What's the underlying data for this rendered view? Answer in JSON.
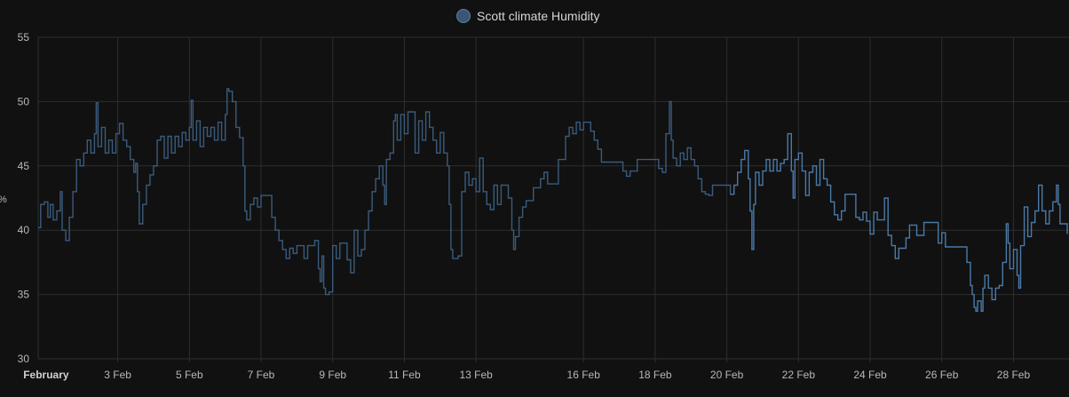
{
  "chart_data": {
    "type": "line",
    "title": "",
    "legend": {
      "position": "top-center",
      "entries": [
        "Scott climate Humidity"
      ]
    },
    "ylabel": "%",
    "ylim": [
      30,
      55
    ],
    "yticks": [
      30,
      35,
      40,
      45,
      50,
      55
    ],
    "xlim": [
      0.78,
      29.55
    ],
    "grid": true,
    "colors": {
      "series": "#4a79a8",
      "series_early": "#3a5b7c",
      "grid": "#2e2e2e",
      "legend_marker": "#3c5573"
    },
    "xticks": [
      {
        "day": 1,
        "label": "February",
        "bold": true
      },
      {
        "day": 3,
        "label": "3 Feb"
      },
      {
        "day": 5,
        "label": "5 Feb"
      },
      {
        "day": 7,
        "label": "7 Feb"
      },
      {
        "day": 9,
        "label": "9 Feb"
      },
      {
        "day": 11,
        "label": "11 Feb"
      },
      {
        "day": 13,
        "label": "13 Feb"
      },
      {
        "day": 16,
        "label": "16 Feb"
      },
      {
        "day": 18,
        "label": "18 Feb"
      },
      {
        "day": 20,
        "label": "20 Feb"
      },
      {
        "day": 22,
        "label": "22 Feb"
      },
      {
        "day": 24,
        "label": "24 Feb"
      },
      {
        "day": 26,
        "label": "26 Feb"
      },
      {
        "day": 28,
        "label": "28 Feb"
      }
    ],
    "series": [
      {
        "name": "Scott climate Humidity",
        "points": [
          [
            0.78,
            40.2
          ],
          [
            0.85,
            42
          ],
          [
            0.95,
            42.2
          ],
          [
            1.05,
            41
          ],
          [
            1.12,
            42
          ],
          [
            1.2,
            40.8
          ],
          [
            1.3,
            41.5
          ],
          [
            1.4,
            43
          ],
          [
            1.45,
            40
          ],
          [
            1.55,
            39.2
          ],
          [
            1.65,
            41
          ],
          [
            1.75,
            43
          ],
          [
            1.85,
            45.5
          ],
          [
            1.95,
            45
          ],
          [
            2.05,
            46
          ],
          [
            2.15,
            47
          ],
          [
            2.25,
            46
          ],
          [
            2.35,
            47.5
          ],
          [
            2.4,
            49.9
          ],
          [
            2.45,
            46.5
          ],
          [
            2.55,
            48
          ],
          [
            2.65,
            46
          ],
          [
            2.75,
            47
          ],
          [
            2.85,
            46
          ],
          [
            2.95,
            47.5
          ],
          [
            3.05,
            48.3
          ],
          [
            3.15,
            47
          ],
          [
            3.25,
            46.5
          ],
          [
            3.35,
            45.5
          ],
          [
            3.45,
            44.5
          ],
          [
            3.5,
            45.2
          ],
          [
            3.55,
            43
          ],
          [
            3.6,
            40.5
          ],
          [
            3.7,
            42
          ],
          [
            3.8,
            43.5
          ],
          [
            3.9,
            44.3
          ],
          [
            4.0,
            45
          ],
          [
            4.1,
            47
          ],
          [
            4.2,
            47.3
          ],
          [
            4.3,
            45.6
          ],
          [
            4.4,
            47.3
          ],
          [
            4.5,
            46
          ],
          [
            4.6,
            47.3
          ],
          [
            4.7,
            46.5
          ],
          [
            4.8,
            47.6
          ],
          [
            4.9,
            47
          ],
          [
            5.0,
            48
          ],
          [
            5.05,
            50.1
          ],
          [
            5.1,
            47
          ],
          [
            5.2,
            48.5
          ],
          [
            5.3,
            46.5
          ],
          [
            5.4,
            48
          ],
          [
            5.5,
            47.3
          ],
          [
            5.6,
            48
          ],
          [
            5.7,
            47
          ],
          [
            5.8,
            48.4
          ],
          [
            5.9,
            47
          ],
          [
            6.0,
            49
          ],
          [
            6.05,
            51
          ],
          [
            6.1,
            50.8
          ],
          [
            6.2,
            50
          ],
          [
            6.3,
            48
          ],
          [
            6.4,
            47.2
          ],
          [
            6.5,
            45
          ],
          [
            6.55,
            41.5
          ],
          [
            6.6,
            40.8
          ],
          [
            6.7,
            42
          ],
          [
            6.8,
            42.5
          ],
          [
            6.9,
            41.8
          ],
          [
            7.0,
            42.7
          ],
          [
            7.1,
            42.7
          ],
          [
            7.2,
            42.7
          ],
          [
            7.3,
            41
          ],
          [
            7.4,
            40
          ],
          [
            7.5,
            39.2
          ],
          [
            7.6,
            38.5
          ],
          [
            7.7,
            37.8
          ],
          [
            7.8,
            38.6
          ],
          [
            7.9,
            38.2
          ],
          [
            8.0,
            38.8
          ],
          [
            8.1,
            38.8
          ],
          [
            8.2,
            37.8
          ],
          [
            8.3,
            38.8
          ],
          [
            8.4,
            38.8
          ],
          [
            8.5,
            39.2
          ],
          [
            8.6,
            37
          ],
          [
            8.65,
            36
          ],
          [
            8.7,
            38
          ],
          [
            8.75,
            35.5
          ],
          [
            8.8,
            35
          ],
          [
            8.9,
            35.2
          ],
          [
            9.0,
            38.8
          ],
          [
            9.1,
            37.8
          ],
          [
            9.2,
            39
          ],
          [
            9.3,
            39
          ],
          [
            9.4,
            37.7
          ],
          [
            9.5,
            36.7
          ],
          [
            9.6,
            40
          ],
          [
            9.7,
            38
          ],
          [
            9.8,
            38.5
          ],
          [
            9.9,
            40
          ],
          [
            10.0,
            41.5
          ],
          [
            10.1,
            43
          ],
          [
            10.2,
            44
          ],
          [
            10.3,
            45
          ],
          [
            10.4,
            43.5
          ],
          [
            10.45,
            42
          ],
          [
            10.5,
            45.5
          ],
          [
            10.6,
            46
          ],
          [
            10.7,
            48.5
          ],
          [
            10.75,
            49
          ],
          [
            10.8,
            47
          ],
          [
            10.9,
            49
          ],
          [
            11.0,
            47.5
          ],
          [
            11.1,
            49.2
          ],
          [
            11.2,
            49.2
          ],
          [
            11.3,
            46
          ],
          [
            11.4,
            48.5
          ],
          [
            11.5,
            47
          ],
          [
            11.6,
            49.2
          ],
          [
            11.7,
            48
          ],
          [
            11.8,
            47
          ],
          [
            11.9,
            46
          ],
          [
            12.0,
            47.6
          ],
          [
            12.1,
            46
          ],
          [
            12.2,
            45
          ],
          [
            12.25,
            42
          ],
          [
            12.3,
            38.5
          ],
          [
            12.35,
            37.8
          ],
          [
            12.45,
            37.8
          ],
          [
            12.5,
            38
          ],
          [
            12.6,
            43
          ],
          [
            12.7,
            44.5
          ],
          [
            12.8,
            43.5
          ],
          [
            12.9,
            44
          ],
          [
            13.0,
            43
          ],
          [
            13.1,
            45.6
          ],
          [
            13.2,
            43
          ],
          [
            13.3,
            42
          ],
          [
            13.4,
            41.6
          ],
          [
            13.5,
            43.5
          ],
          [
            13.6,
            42
          ],
          [
            13.7,
            43.5
          ],
          [
            13.8,
            43.5
          ],
          [
            13.9,
            42.5
          ],
          [
            14.0,
            40
          ],
          [
            14.05,
            38.5
          ],
          [
            14.1,
            39.5
          ],
          [
            14.2,
            41
          ],
          [
            14.3,
            41.8
          ],
          [
            14.4,
            42.3
          ],
          [
            14.5,
            42.3
          ],
          [
            14.6,
            43.3
          ],
          [
            14.7,
            43.3
          ],
          [
            14.8,
            44
          ],
          [
            14.9,
            44.5
          ],
          [
            15.0,
            43.6
          ],
          [
            15.2,
            43.6
          ],
          [
            15.3,
            45.5
          ],
          [
            15.4,
            45.5
          ],
          [
            15.5,
            47.3
          ],
          [
            15.6,
            48
          ],
          [
            15.7,
            47.5
          ],
          [
            15.8,
            48.4
          ],
          [
            15.9,
            47.8
          ],
          [
            16.0,
            48.4
          ],
          [
            16.1,
            48.4
          ],
          [
            16.2,
            47.7
          ],
          [
            16.3,
            47
          ],
          [
            16.4,
            46.3
          ],
          [
            16.5,
            45.3
          ],
          [
            16.6,
            45.3
          ],
          [
            16.8,
            45.3
          ],
          [
            17.0,
            45.3
          ],
          [
            17.1,
            44.6
          ],
          [
            17.2,
            44.2
          ],
          [
            17.3,
            44.6
          ],
          [
            17.4,
            44.6
          ],
          [
            17.5,
            45.5
          ],
          [
            17.6,
            45.5
          ],
          [
            17.8,
            45.5
          ],
          [
            18.0,
            45.5
          ],
          [
            18.1,
            44.8
          ],
          [
            18.2,
            44.5
          ],
          [
            18.3,
            47.5
          ],
          [
            18.4,
            50
          ],
          [
            18.45,
            47
          ],
          [
            18.5,
            45.6
          ],
          [
            18.6,
            45
          ],
          [
            18.7,
            46
          ],
          [
            18.8,
            45.5
          ],
          [
            18.9,
            46.4
          ],
          [
            19.0,
            45.5
          ],
          [
            19.1,
            45
          ],
          [
            19.2,
            44
          ],
          [
            19.3,
            43
          ],
          [
            19.4,
            42.8
          ],
          [
            19.5,
            42.7
          ],
          [
            19.6,
            43.5
          ],
          [
            19.7,
            43.5
          ],
          [
            19.8,
            43.5
          ],
          [
            19.9,
            43.5
          ],
          [
            20.0,
            43.5
          ],
          [
            20.1,
            42.8
          ],
          [
            20.2,
            43.5
          ],
          [
            20.3,
            44.5
          ],
          [
            20.4,
            45.5
          ],
          [
            20.5,
            46.2
          ],
          [
            20.6,
            44
          ],
          [
            20.65,
            41.5
          ],
          [
            20.7,
            38.5
          ],
          [
            20.75,
            42
          ],
          [
            20.8,
            44.5
          ],
          [
            20.9,
            43.5
          ],
          [
            21.0,
            44.6
          ],
          [
            21.1,
            45.5
          ],
          [
            21.2,
            44.6
          ],
          [
            21.3,
            45.5
          ],
          [
            21.4,
            44.6
          ],
          [
            21.5,
            45.2
          ],
          [
            21.6,
            45.5
          ],
          [
            21.7,
            47.5
          ],
          [
            21.8,
            44.6
          ],
          [
            21.85,
            42.5
          ],
          [
            21.9,
            45.5
          ],
          [
            22.0,
            46
          ],
          [
            22.1,
            44.6
          ],
          [
            22.2,
            42.7
          ],
          [
            22.3,
            44.5
          ],
          [
            22.4,
            45
          ],
          [
            22.5,
            43.5
          ],
          [
            22.6,
            45.5
          ],
          [
            22.7,
            44
          ],
          [
            22.8,
            43.5
          ],
          [
            22.9,
            42.2
          ],
          [
            23.0,
            41.2
          ],
          [
            23.1,
            40.8
          ],
          [
            23.2,
            41.5
          ],
          [
            23.3,
            42.8
          ],
          [
            23.4,
            42.8
          ],
          [
            23.5,
            42.8
          ],
          [
            23.6,
            41
          ],
          [
            23.7,
            40.8
          ],
          [
            23.8,
            41.4
          ],
          [
            23.9,
            40.7
          ],
          [
            24.0,
            39.7
          ],
          [
            24.1,
            41.4
          ],
          [
            24.2,
            40.8
          ],
          [
            24.3,
            40.8
          ],
          [
            24.4,
            42.5
          ],
          [
            24.5,
            39.6
          ],
          [
            24.6,
            38.8
          ],
          [
            24.7,
            37.8
          ],
          [
            24.8,
            38.6
          ],
          [
            24.9,
            38.6
          ],
          [
            25.0,
            39.4
          ],
          [
            25.1,
            40.4
          ],
          [
            25.2,
            40.4
          ],
          [
            25.3,
            39.6
          ],
          [
            25.4,
            39.6
          ],
          [
            25.5,
            40.6
          ],
          [
            25.6,
            40.6
          ],
          [
            25.8,
            40.6
          ],
          [
            25.9,
            39
          ],
          [
            26.0,
            39.8
          ],
          [
            26.1,
            38.7
          ],
          [
            26.2,
            38.7
          ],
          [
            26.3,
            38.7
          ],
          [
            26.4,
            38.7
          ],
          [
            26.5,
            38.7
          ],
          [
            26.6,
            38.7
          ],
          [
            26.7,
            37.5
          ],
          [
            26.8,
            35.7
          ],
          [
            26.85,
            35
          ],
          [
            26.9,
            34
          ],
          [
            26.95,
            33.7
          ],
          [
            27.0,
            34.5
          ],
          [
            27.05,
            34.5
          ],
          [
            27.1,
            33.7
          ],
          [
            27.15,
            35.5
          ],
          [
            27.2,
            36.5
          ],
          [
            27.3,
            35.5
          ],
          [
            27.4,
            34.6
          ],
          [
            27.5,
            35.5
          ],
          [
            27.6,
            35.7
          ],
          [
            27.7,
            37.5
          ],
          [
            27.8,
            40.5
          ],
          [
            27.85,
            39
          ],
          [
            27.9,
            37
          ],
          [
            28.0,
            38.5
          ],
          [
            28.1,
            36.5
          ],
          [
            28.15,
            35.5
          ],
          [
            28.2,
            38.8
          ],
          [
            28.3,
            41.8
          ],
          [
            28.4,
            39.5
          ],
          [
            28.5,
            40.6
          ],
          [
            28.6,
            41.5
          ],
          [
            28.7,
            43.5
          ],
          [
            28.8,
            41.5
          ],
          [
            28.9,
            40.5
          ],
          [
            29.0,
            41.5
          ],
          [
            29.1,
            42.2
          ],
          [
            29.2,
            43.5
          ],
          [
            29.25,
            42
          ],
          [
            29.3,
            40.5
          ],
          [
            29.4,
            40.5
          ],
          [
            29.5,
            39.7
          ]
        ]
      }
    ]
  }
}
